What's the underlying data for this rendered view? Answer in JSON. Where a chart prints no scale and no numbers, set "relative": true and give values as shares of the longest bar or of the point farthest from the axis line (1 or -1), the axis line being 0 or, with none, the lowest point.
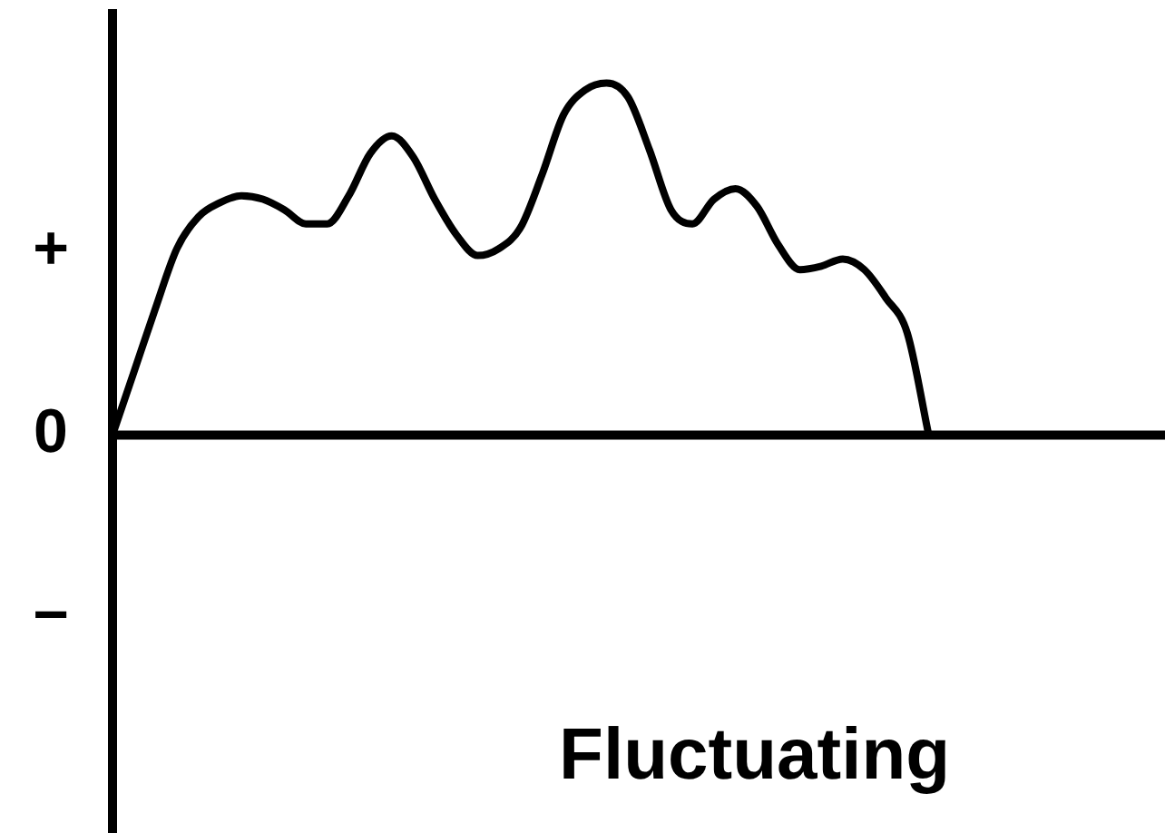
{
  "chart_data": {
    "type": "line",
    "title": "Fluctuating",
    "relative": true,
    "color": "#000000",
    "marker": "none",
    "legend": false,
    "annotations": [
      "+",
      "0",
      "−"
    ],
    "categories": [
      null,
      null,
      null,
      null,
      null,
      null,
      null,
      null,
      null,
      null,
      null,
      null,
      null,
      null,
      null,
      null,
      null,
      null,
      null,
      null,
      null,
      null,
      null,
      null,
      null,
      null,
      null,
      null,
      null,
      null,
      null,
      null,
      null,
      null,
      null,
      null,
      null,
      null,
      null,
      null,
      null,
      null,
      null,
      null,
      null,
      null,
      null,
      null,
      null,
      null
    ],
    "values": [
      0,
      0.18,
      0.36,
      0.53,
      0.62,
      0.66,
      0.68,
      0.67,
      0.64,
      0.6,
      0.6,
      0.68,
      0.8,
      0.85,
      0.79,
      0.67,
      0.57,
      0.51,
      0.53,
      0.59,
      0.74,
      0.91,
      0.98,
      1,
      0.96,
      0.81,
      0.64,
      0.6,
      0.67,
      0.7,
      0.65,
      0.54,
      0.47,
      0.48,
      0.5,
      0.47,
      0.39,
      0.29,
      0,
      null,
      null,
      null,
      null,
      null,
      null,
      null,
      null,
      null,
      null,
      null
    ]
  }
}
